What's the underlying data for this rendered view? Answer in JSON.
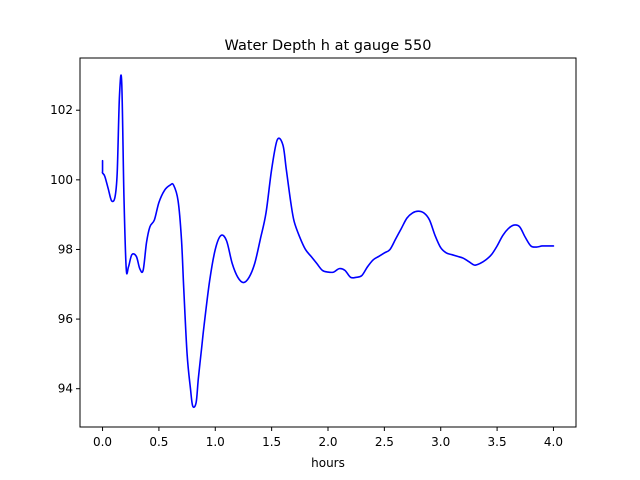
{
  "chart_data": {
    "type": "line",
    "title": "Water Depth h at gauge 550",
    "xlabel": "hours",
    "ylabel": "",
    "xlim": [
      -0.2,
      4.2
    ],
    "ylim": [
      92.9,
      103.5
    ],
    "grid": false,
    "xticks": [
      0.0,
      0.5,
      1.0,
      1.5,
      2.0,
      2.5,
      3.0,
      3.5,
      4.0
    ],
    "xtick_labels": [
      "0.0",
      "0.5",
      "1.0",
      "1.5",
      "2.0",
      "2.5",
      "3.0",
      "3.5",
      "4.0"
    ],
    "yticks": [
      94,
      96,
      98,
      100,
      102
    ],
    "ytick_labels": [
      "94",
      "96",
      "98",
      "100",
      "102"
    ],
    "series": [
      {
        "color": "#0000ff",
        "x": [
          0.0,
          0.0,
          0.0,
          0.02,
          0.05,
          0.08,
          0.11,
          0.13,
          0.15,
          0.17,
          0.19,
          0.21,
          0.23,
          0.26,
          0.3,
          0.33,
          0.36,
          0.39,
          0.42,
          0.46,
          0.5,
          0.55,
          0.6,
          0.63,
          0.67,
          0.7,
          0.72,
          0.75,
          0.78,
          0.8,
          0.83,
          0.85,
          0.88,
          0.9,
          0.95,
          1.0,
          1.05,
          1.1,
          1.15,
          1.2,
          1.25,
          1.3,
          1.35,
          1.4,
          1.45,
          1.5,
          1.55,
          1.6,
          1.63,
          1.67,
          1.7,
          1.75,
          1.8,
          1.85,
          1.9,
          1.95,
          2.0,
          2.05,
          2.1,
          2.15,
          2.2,
          2.25,
          2.3,
          2.35,
          2.4,
          2.45,
          2.5,
          2.55,
          2.6,
          2.65,
          2.7,
          2.75,
          2.8,
          2.85,
          2.9,
          2.95,
          3.0,
          3.05,
          3.1,
          3.15,
          3.2,
          3.25,
          3.3,
          3.35,
          3.4,
          3.45,
          3.5,
          3.55,
          3.6,
          3.65,
          3.7,
          3.75,
          3.8,
          3.85,
          3.9,
          3.95,
          4.0
        ],
        "y": [
          100.55,
          100.25,
          100.2,
          100.1,
          99.75,
          99.4,
          99.5,
          100.2,
          102.4,
          102.8,
          99.5,
          97.45,
          97.5,
          97.85,
          97.8,
          97.45,
          97.4,
          98.2,
          98.65,
          98.85,
          99.35,
          99.7,
          99.85,
          99.85,
          99.4,
          98.3,
          96.9,
          95.0,
          94.0,
          93.5,
          93.6,
          94.3,
          95.2,
          95.8,
          97.1,
          98.0,
          98.4,
          98.25,
          97.6,
          97.2,
          97.05,
          97.2,
          97.6,
          98.3,
          99.05,
          100.3,
          101.15,
          101.0,
          100.3,
          99.35,
          98.8,
          98.35,
          98.0,
          97.8,
          97.6,
          97.4,
          97.35,
          97.35,
          97.45,
          97.4,
          97.2,
          97.2,
          97.25,
          97.5,
          97.7,
          97.8,
          97.9,
          98.0,
          98.3,
          98.6,
          98.9,
          99.05,
          99.1,
          99.05,
          98.85,
          98.4,
          98.05,
          97.9,
          97.85,
          97.8,
          97.75,
          97.65,
          97.55,
          97.6,
          97.7,
          97.85,
          98.1,
          98.4,
          98.6,
          98.7,
          98.65,
          98.35,
          98.1,
          98.07,
          98.1,
          98.1,
          98.1
        ]
      }
    ]
  }
}
